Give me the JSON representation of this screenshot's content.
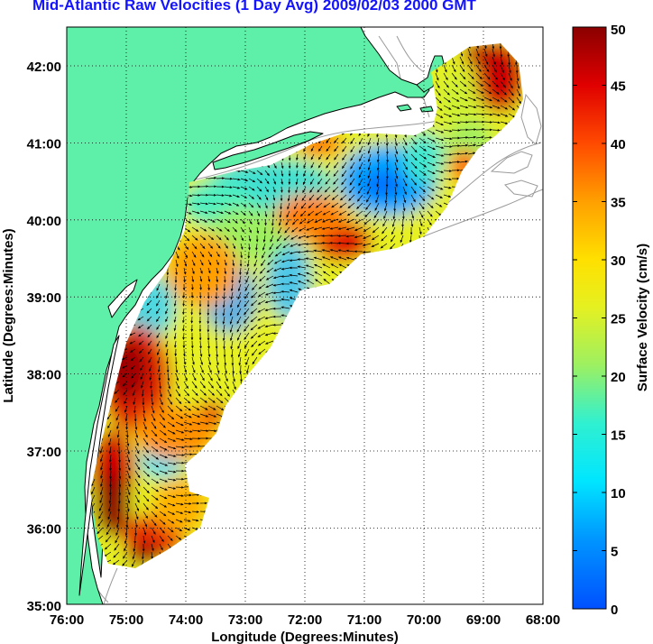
{
  "title": "Mid-Atlantic Raw Velocities (1 Day Avg) 2009/02/03 2000 GMT",
  "map": {
    "xlabel": "Longitude (Degrees:Minutes)",
    "ylabel": "Latitude (Degrees:Minutes)",
    "x_ticks": [
      "76:00",
      "75:00",
      "74:00",
      "73:00",
      "72:00",
      "71:00",
      "70:00",
      "69:00",
      "68:00"
    ],
    "y_ticks": [
      "42:00",
      "41:00",
      "40:00",
      "39:00",
      "38:00",
      "37:00",
      "36:00",
      "35:00"
    ],
    "lon_range": [
      -76,
      -68
    ],
    "lat_range": [
      35,
      42.5
    ],
    "grid": "dotted",
    "land_color": "#5ef0a8",
    "land_outline_color": "#000000",
    "bathymetry_color": "#9a9a9a"
  },
  "colorbar": {
    "label": "Surface Velocity (cm/s)",
    "ticks": [
      "50",
      "45",
      "40",
      "35",
      "30",
      "25",
      "20",
      "15",
      "10",
      "5",
      "0"
    ],
    "range": [
      0,
      50
    ],
    "colormap": "jet"
  }
}
